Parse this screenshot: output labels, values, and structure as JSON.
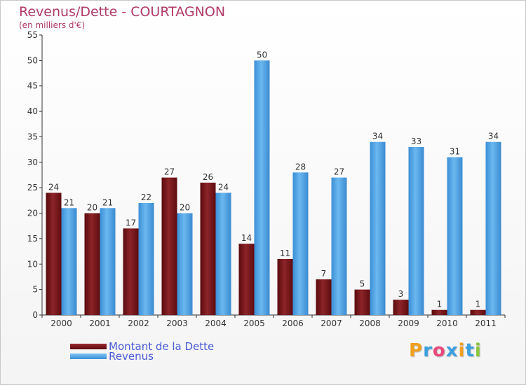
{
  "header": {
    "title": "Revenus/Dette - COURTAGNON",
    "subtitle": "(en milliers d'€)"
  },
  "logo": {
    "letters": [
      "P",
      "r",
      "o",
      "x",
      "i",
      "t",
      "i"
    ],
    "colors": [
      "#f0a020",
      "#3aa0e0",
      "#e84a7a",
      "#3aa0e0",
      "#f0a020",
      "#3aa0e0",
      "#8cc63f"
    ]
  },
  "chart_data": {
    "type": "bar",
    "title": "Revenus/Dette - COURTAGNON",
    "ylabel": "(en milliers d'€)",
    "xlabel": "",
    "categories": [
      "2000",
      "2001",
      "2002",
      "2003",
      "2004",
      "2005",
      "2006",
      "2007",
      "2008",
      "2009",
      "2010",
      "2011"
    ],
    "series": [
      {
        "name": "Montant de la Dette",
        "color": "#7a1418",
        "values": [
          24,
          20,
          17,
          27,
          26,
          14,
          11,
          7,
          5,
          3,
          1,
          1
        ]
      },
      {
        "name": "Revenus",
        "color": "#4ea6e6",
        "values": [
          21,
          21,
          22,
          20,
          24,
          50,
          28,
          27,
          34,
          33,
          31,
          34
        ]
      }
    ],
    "ylim": [
      0,
      55
    ],
    "yticks": [
      "0",
      "5",
      "10",
      "15",
      "20",
      "25",
      "30",
      "35",
      "40",
      "45",
      "50",
      "55"
    ],
    "grid": false,
    "legend": "bottom-left"
  }
}
